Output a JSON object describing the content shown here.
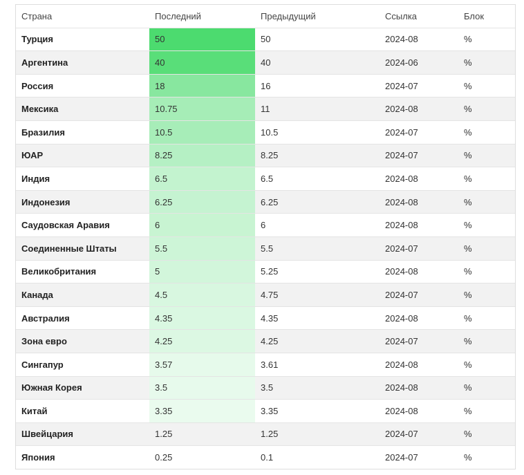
{
  "table": {
    "header": [
      "Страна",
      "Последний",
      "Предыдущий",
      "Ссылка",
      "Блок"
    ],
    "rows": [
      [
        "Турция",
        "50",
        "50",
        "2024-08",
        "%"
      ],
      [
        "Аргентина",
        "40",
        "40",
        "2024-06",
        "%"
      ],
      [
        "Россия",
        "18",
        "16",
        "2024-07",
        "%"
      ],
      [
        "Мексика",
        "10.75",
        "11",
        "2024-08",
        "%"
      ],
      [
        "Бразилия",
        "10.5",
        "10.5",
        "2024-07",
        "%"
      ],
      [
        "ЮАР",
        "8.25",
        "8.25",
        "2024-07",
        "%"
      ],
      [
        "Индия",
        "6.5",
        "6.5",
        "2024-08",
        "%"
      ],
      [
        "Индонезия",
        "6.25",
        "6.25",
        "2024-08",
        "%"
      ],
      [
        "Саудовская Аравия",
        "6",
        "6",
        "2024-08",
        "%"
      ],
      [
        "Соединенные Штаты",
        "5.5",
        "5.5",
        "2024-07",
        "%"
      ],
      [
        "Великобритания",
        "5",
        "5.25",
        "2024-08",
        "%"
      ],
      [
        "Канада",
        "4.5",
        "4.75",
        "2024-07",
        "%"
      ],
      [
        "Австралия",
        "4.35",
        "4.35",
        "2024-08",
        "%"
      ],
      [
        "Зона евро",
        "4.25",
        "4.25",
        "2024-07",
        "%"
      ],
      [
        "Сингапур",
        "3.57",
        "3.61",
        "2024-08",
        "%"
      ],
      [
        "Южная Корея",
        "3.5",
        "3.5",
        "2024-08",
        "%"
      ],
      [
        "Китай",
        "3.35",
        "3.35",
        "2024-08",
        "%"
      ],
      [
        "Швейцария",
        "1.25",
        "1.25",
        "2024-07",
        "%"
      ],
      [
        "Япония",
        "0.25",
        "0.1",
        "2024-07",
        "%"
      ]
    ]
  }
}
